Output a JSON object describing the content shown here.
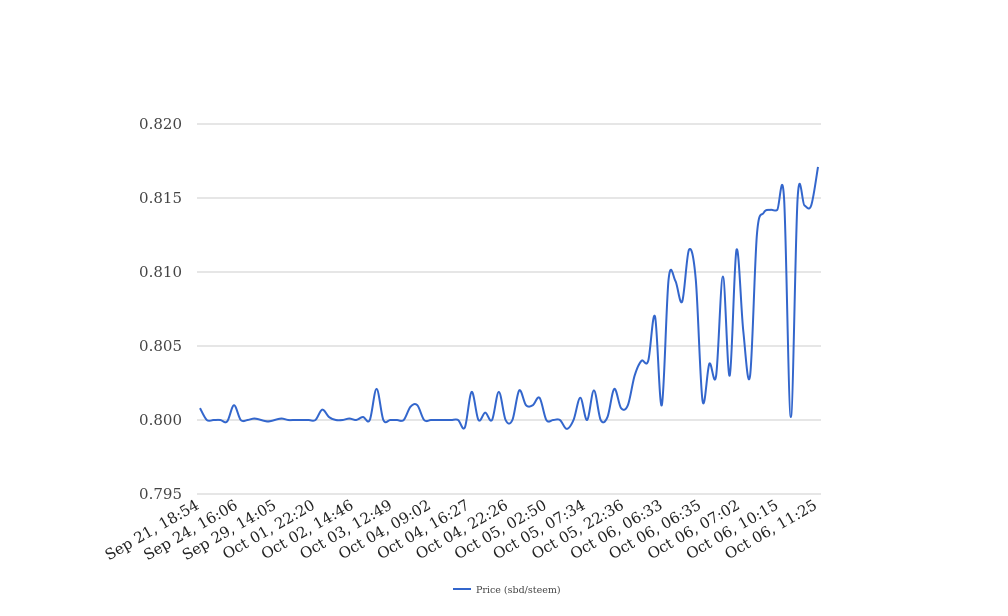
{
  "chart_data": {
    "type": "line",
    "title": "",
    "xlabel": "",
    "ylabel": "",
    "ylim": [
      0.795,
      0.82
    ],
    "y_ticks": [
      "0.795",
      "0.800",
      "0.805",
      "0.810",
      "0.815",
      "0.820"
    ],
    "x_tick_labels": [
      "Sep 21, 18:54",
      "Sep 24, 16:06",
      "Sep 29, 14:05",
      "Oct 01, 22:20",
      "Oct 02, 14:46",
      "Oct 03, 12:49",
      "Oct 04, 09:02",
      "Oct 04, 16:27",
      "Oct 04, 22:26",
      "Oct 05, 02:50",
      "Oct 05, 07:34",
      "Oct 05, 22:36",
      "Oct 06, 06:33",
      "Oct 06, 06:35",
      "Oct 06, 07:02",
      "Oct 06, 10:15",
      "Oct 06, 11:25"
    ],
    "grid": true,
    "legend_position": "bottom",
    "series": [
      {
        "name": "Price (sbd/steem)",
        "color": "#3366cc",
        "values": [
          0.8008,
          0.8,
          0.8,
          0.8,
          0.7999,
          0.801,
          0.8,
          0.8,
          0.8001,
          0.8,
          0.7999,
          0.8,
          0.8001,
          0.8,
          0.8,
          0.8,
          0.8,
          0.8,
          0.8007,
          0.8002,
          0.8,
          0.8,
          0.8001,
          0.8,
          0.8002,
          0.8,
          0.8021,
          0.8,
          0.8,
          0.8,
          0.8,
          0.8009,
          0.801,
          0.8,
          0.8,
          0.8,
          0.8,
          0.8,
          0.8,
          0.7995,
          0.8019,
          0.8,
          0.8005,
          0.8,
          0.8019,
          0.8,
          0.8,
          0.802,
          0.801,
          0.801,
          0.8015,
          0.8,
          0.8,
          0.8,
          0.7994,
          0.8,
          0.8015,
          0.8,
          0.802,
          0.8,
          0.8002,
          0.8021,
          0.8008,
          0.801,
          0.803,
          0.804,
          0.804,
          0.807,
          0.801,
          0.8095,
          0.8094,
          0.808,
          0.8115,
          0.8095,
          0.8013,
          0.8038,
          0.803,
          0.8097,
          0.803,
          0.8115,
          0.806,
          0.803,
          0.8125,
          0.814,
          0.8142,
          0.8142,
          0.815,
          0.8002,
          0.815,
          0.8145,
          0.8145,
          0.8171
        ]
      }
    ]
  }
}
